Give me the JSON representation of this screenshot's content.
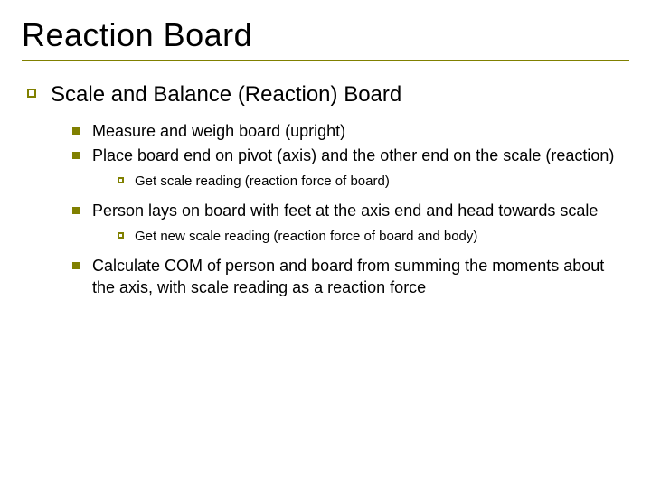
{
  "colors": {
    "accent": "#808000",
    "text": "#000000",
    "background": "#ffffff"
  },
  "typography": {
    "font_family": "Verdana",
    "title_fontsize": 36,
    "level1_fontsize": 24,
    "level2_fontsize": 18,
    "level3_fontsize": 15
  },
  "title": "Reaction Board",
  "bullets": {
    "l1_0": "Scale and Balance (Reaction) Board",
    "l2_0": "Measure and weigh board (upright)",
    "l2_1": "Place board end on pivot (axis) and the other end on the scale (reaction)",
    "l3_0": "Get scale reading (reaction force of board)",
    "l2_2": "Person lays on board with feet at the axis end and head towards scale",
    "l3_1": "Get new scale reading (reaction force of board and body)",
    "l2_3": "Calculate COM of person and board from summing the moments about the axis, with scale reading as a reaction force"
  },
  "bullet_styles": {
    "level1": {
      "shape": "hollow-square",
      "size": 10,
      "border_color": "#808000",
      "border_width": 2
    },
    "level2": {
      "shape": "filled-square",
      "size": 8,
      "fill_color": "#808000"
    },
    "level3": {
      "shape": "hollow-square",
      "size": 7,
      "border_color": "#808000",
      "border_width": 2
    }
  }
}
